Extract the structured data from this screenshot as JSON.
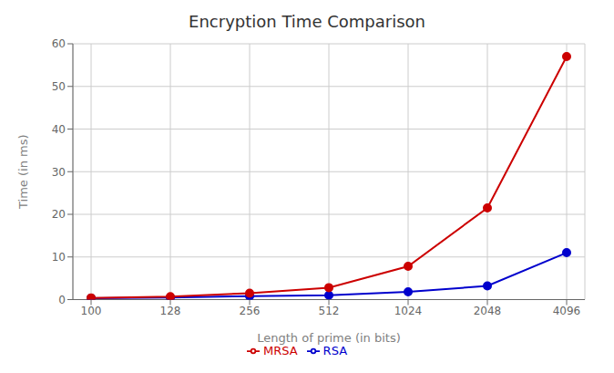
{
  "chart_data": {
    "type": "line",
    "title": "Encryption Time Comparison",
    "xlabel": "Length of prime (in bits)",
    "ylabel": "Time (in ms)",
    "categories": [
      "100",
      "128",
      "256",
      "512",
      "1024",
      "2048",
      "4096"
    ],
    "series": [
      {
        "name": "RSA",
        "color": "#0000cd",
        "values": [
          0.3,
          0.5,
          0.8,
          1.0,
          1.8,
          3.2,
          11.0
        ]
      },
      {
        "name": "MRSA",
        "color": "#cc0000",
        "values": [
          0.4,
          0.7,
          1.5,
          2.8,
          7.8,
          21.5,
          57.0
        ]
      }
    ],
    "ylim": [
      0,
      60
    ],
    "yticks": [
      0,
      10,
      20,
      30,
      40,
      50,
      60
    ],
    "grid": true,
    "legend": "bottom",
    "marker": "circle"
  }
}
